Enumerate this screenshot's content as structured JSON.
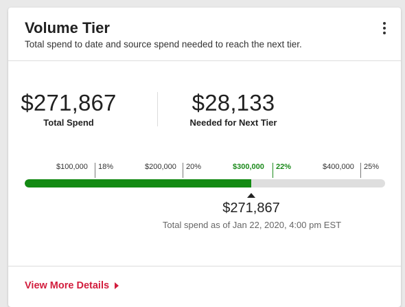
{
  "card": {
    "title": "Volume Tier",
    "subtitle": "Total spend to date and source spend needed to reach the next tier."
  },
  "stats": {
    "total_spend": {
      "value": "$271,867",
      "label": "Total Spend"
    },
    "needed": {
      "value": "$28,133",
      "label": "Needed for Next Tier"
    }
  },
  "progress": {
    "tiers": [
      {
        "amount": "$100,000",
        "rate": "18%",
        "current": false
      },
      {
        "amount": "$200,000",
        "rate": "20%",
        "current": false
      },
      {
        "amount": "$300,000",
        "rate": "22%",
        "current": true
      },
      {
        "amount": "$400,000",
        "rate": "25%",
        "current": false
      }
    ],
    "fill_fraction": 0.629,
    "marker_value": "$271,867",
    "marker_caption": "Total spend as of Jan 22, 2020, 4:00 pm EST"
  },
  "footer": {
    "link_label": "View More Details"
  },
  "colors": {
    "fill": "#138a13",
    "current_tier": "#1b8a1b",
    "link": "#d21d3d"
  },
  "icons": {
    "menu": "kebab-menu-icon",
    "link_caret": "caret-right-icon"
  }
}
